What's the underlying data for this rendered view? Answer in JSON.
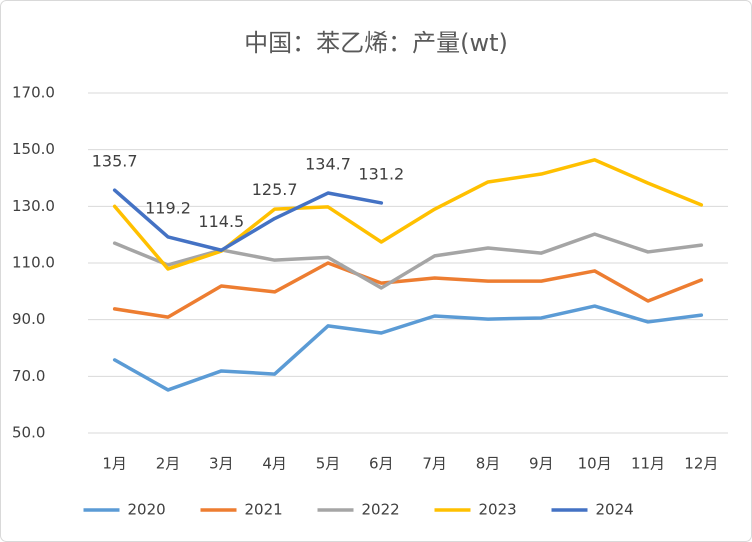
{
  "chart_data": {
    "type": "line",
    "title": "中国：苯乙烯：产量(wt)",
    "categories": [
      "1月",
      "2月",
      "3月",
      "4月",
      "5月",
      "6月",
      "7月",
      "8月",
      "9月",
      "10月",
      "11月",
      "12月"
    ],
    "ylim": [
      50,
      170
    ],
    "yticks": [
      {
        "value": 50,
        "label": "50.0"
      },
      {
        "value": 70,
        "label": "70.0"
      },
      {
        "value": 90,
        "label": "90.0"
      },
      {
        "value": 110,
        "label": "110.0"
      },
      {
        "value": 130,
        "label": "130.0"
      },
      {
        "value": 150,
        "label": "150.0"
      },
      {
        "value": 170,
        "label": "170.0"
      }
    ],
    "grid": true,
    "legend": "bottom",
    "series": [
      {
        "name": "2020",
        "color": "#5b9bd5",
        "values": [
          75.8,
          65.2,
          71.9,
          70.8,
          87.8,
          85.3,
          91.3,
          90.2,
          90.6,
          94.8,
          89.2,
          91.6
        ]
      },
      {
        "name": "2021",
        "color": "#ed7d31",
        "values": [
          93.8,
          90.9,
          101.9,
          99.8,
          110,
          102.9,
          104.7,
          103.6,
          103.6,
          107.2,
          96.6,
          104
        ]
      },
      {
        "name": "2022",
        "color": "#a5a5a5",
        "values": [
          117,
          109.3,
          114.6,
          111,
          112,
          101.2,
          112.5,
          115.3,
          113.5,
          120.2,
          113.9,
          116.3
        ]
      },
      {
        "name": "2023",
        "color": "#ffc000",
        "values": [
          130,
          107.9,
          114.2,
          129,
          129.8,
          117.4,
          129,
          138.6,
          141.4,
          146.4,
          138.2,
          130.5
        ]
      },
      {
        "name": "2024",
        "color": "#4472c4",
        "values": [
          135.7,
          119.2,
          114.5,
          125.7,
          134.7,
          131.2,
          null,
          null,
          null,
          null,
          null,
          null
        ],
        "data_labels": true
      }
    ]
  }
}
